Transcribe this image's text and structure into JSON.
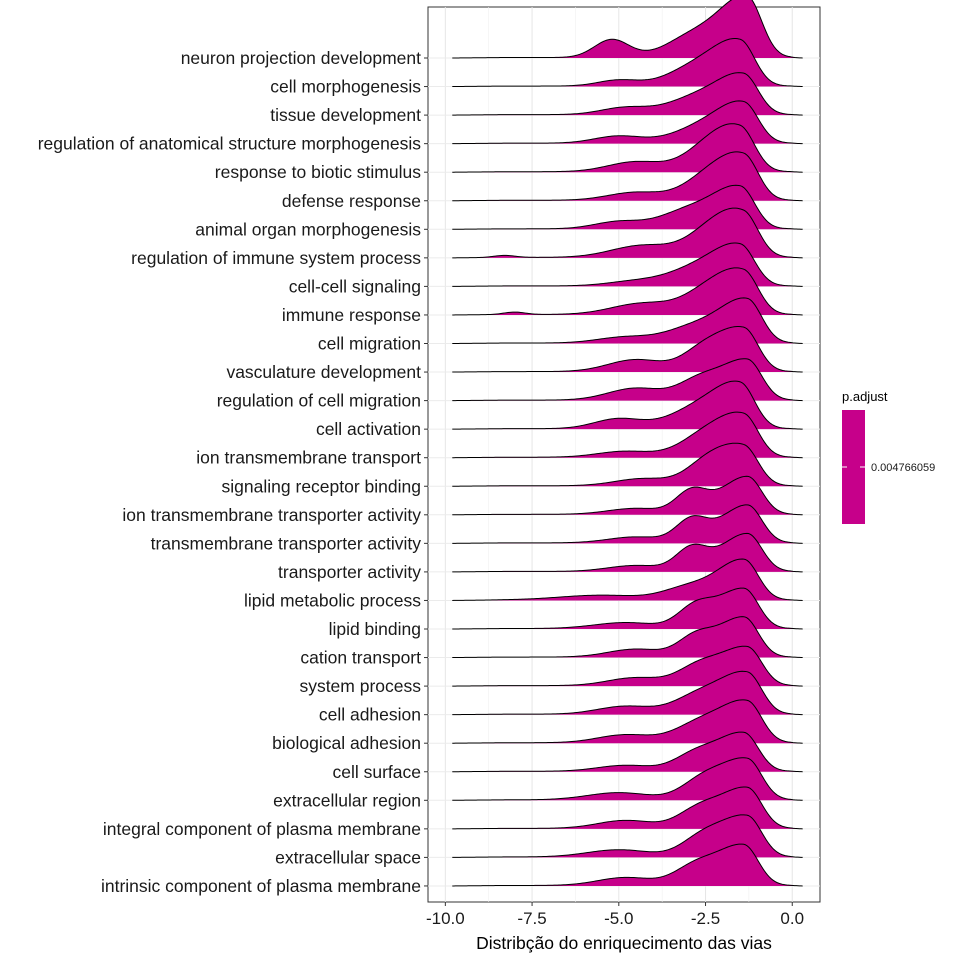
{
  "chart_data": {
    "type": "ridgeline",
    "xlabel": "Distribção do enriquecimento das vias",
    "ylabel": "",
    "xlim": [
      -10.5,
      0.8
    ],
    "x_ticks": [
      -10.0,
      -7.5,
      -5.0,
      -2.5,
      0.0
    ],
    "x_tick_labels": [
      "-10.0",
      "-7.5",
      "-5.0",
      "-2.5",
      "0.0"
    ],
    "fill_color": "#C6008A",
    "grid": true,
    "legend": {
      "title": "p.adjust",
      "label": "0.004766059",
      "placement": "right",
      "color": "#C6008A"
    },
    "categories": [
      {
        "name": "neuron projection development",
        "range": [
          -9.8,
          0.3
        ],
        "peak": -1.3,
        "peak_height": 1.45,
        "bumps": [
          [
            -5.2,
            0.45,
            0.5
          ],
          [
            -2.8,
            0.55,
            0.8
          ]
        ]
      },
      {
        "name": "cell morphogenesis",
        "range": [
          -9.8,
          0.3
        ],
        "peak": -1.5,
        "peak_height": 1.05,
        "bumps": [
          [
            -5.0,
            0.15,
            0.6
          ],
          [
            -2.8,
            0.45,
            0.8
          ]
        ]
      },
      {
        "name": "tissue development",
        "range": [
          -9.8,
          0.3
        ],
        "peak": -1.4,
        "peak_height": 0.95,
        "bumps": [
          [
            -4.8,
            0.18,
            0.7
          ],
          [
            -2.8,
            0.4,
            0.8
          ]
        ]
      },
      {
        "name": "regulation of anatomical structure morphogenesis",
        "range": [
          -9.8,
          0.3
        ],
        "peak": -1.4,
        "peak_height": 0.95,
        "bumps": [
          [
            -5.0,
            0.18,
            0.7
          ],
          [
            -2.7,
            0.35,
            0.8
          ]
        ]
      },
      {
        "name": "response to biotic stimulus",
        "range": [
          -9.8,
          0.3
        ],
        "peak": -1.5,
        "peak_height": 1.0,
        "bumps": [
          [
            -4.5,
            0.25,
            0.8
          ],
          [
            -2.5,
            0.45,
            0.7
          ]
        ]
      },
      {
        "name": "defense response",
        "range": [
          -9.8,
          0.3
        ],
        "peak": -1.4,
        "peak_height": 1.05,
        "bumps": [
          [
            -4.5,
            0.2,
            0.8
          ],
          [
            -2.5,
            0.45,
            0.7
          ]
        ]
      },
      {
        "name": "animal organ morphogenesis",
        "range": [
          -9.8,
          0.3
        ],
        "peak": -1.5,
        "peak_height": 1.0,
        "bumps": [
          [
            -5.0,
            0.18,
            0.7
          ],
          [
            -3.0,
            0.45,
            0.8
          ]
        ]
      },
      {
        "name": "regulation of immune system process",
        "range": [
          -9.8,
          0.3
        ],
        "peak": -1.4,
        "peak_height": 1.0,
        "bumps": [
          [
            -8.3,
            0.05,
            0.3
          ],
          [
            -4.3,
            0.3,
            0.9
          ],
          [
            -2.4,
            0.5,
            0.7
          ]
        ]
      },
      {
        "name": "cell-cell signaling",
        "range": [
          -9.8,
          0.3
        ],
        "peak": -1.5,
        "peak_height": 0.95,
        "bumps": [
          [
            -4.5,
            0.12,
            0.8
          ],
          [
            -2.8,
            0.4,
            0.8
          ]
        ]
      },
      {
        "name": "immune response",
        "range": [
          -9.8,
          0.3
        ],
        "peak": -1.4,
        "peak_height": 1.0,
        "bumps": [
          [
            -8.0,
            0.06,
            0.3
          ],
          [
            -4.3,
            0.28,
            0.9
          ],
          [
            -2.5,
            0.45,
            0.7
          ]
        ]
      },
      {
        "name": "cell migration",
        "range": [
          -9.8,
          0.3
        ],
        "peak": -1.3,
        "peak_height": 1.05,
        "bumps": [
          [
            -4.8,
            0.15,
            0.8
          ],
          [
            -2.8,
            0.4,
            0.8
          ]
        ]
      },
      {
        "name": "vasculature development",
        "range": [
          -9.8,
          0.3
        ],
        "peak": -1.4,
        "peak_height": 1.05,
        "bumps": [
          [
            -4.5,
            0.3,
            0.8
          ],
          [
            -2.6,
            0.45,
            0.6
          ]
        ]
      },
      {
        "name": "regulation of cell migration",
        "range": [
          -9.8,
          0.3
        ],
        "peak": -1.3,
        "peak_height": 1.0,
        "bumps": [
          [
            -4.5,
            0.3,
            0.8
          ],
          [
            -2.7,
            0.45,
            0.6
          ]
        ]
      },
      {
        "name": "cell activation",
        "range": [
          -9.8,
          0.3
        ],
        "peak": -1.5,
        "peak_height": 1.05,
        "bumps": [
          [
            -5.0,
            0.25,
            0.7
          ],
          [
            -2.8,
            0.45,
            0.8
          ]
        ]
      },
      {
        "name": "ion transmembrane transport",
        "range": [
          -9.8,
          0.3
        ],
        "peak": -1.4,
        "peak_height": 1.0,
        "bumps": [
          [
            -4.8,
            0.15,
            0.8
          ],
          [
            -2.6,
            0.45,
            0.7
          ]
        ]
      },
      {
        "name": "signaling receptor binding",
        "range": [
          -9.8,
          0.3
        ],
        "peak": -1.4,
        "peak_height": 0.95,
        "bumps": [
          [
            -4.3,
            0.18,
            0.8
          ],
          [
            -2.5,
            0.45,
            0.6
          ]
        ]
      },
      {
        "name": "ion transmembrane transporter activity",
        "range": [
          -9.8,
          0.3
        ],
        "peak": -1.3,
        "peak_height": 0.95,
        "bumps": [
          [
            -4.5,
            0.15,
            0.8
          ],
          [
            -2.9,
            0.55,
            0.45
          ]
        ]
      },
      {
        "name": "transmembrane transporter activity",
        "range": [
          -9.8,
          0.3
        ],
        "peak": -1.3,
        "peak_height": 0.95,
        "bumps": [
          [
            -4.5,
            0.15,
            0.8
          ],
          [
            -2.9,
            0.55,
            0.45
          ]
        ]
      },
      {
        "name": "transporter activity",
        "range": [
          -9.8,
          0.3
        ],
        "peak": -1.3,
        "peak_height": 0.95,
        "bumps": [
          [
            -4.5,
            0.15,
            0.8
          ],
          [
            -2.9,
            0.55,
            0.45
          ]
        ]
      },
      {
        "name": "lipid metabolic process",
        "range": [
          -9.8,
          0.3
        ],
        "peak": -1.4,
        "peak_height": 1.0,
        "bumps": [
          [
            -5.5,
            0.12,
            1.2
          ],
          [
            -3.0,
            0.3,
            0.7
          ]
        ]
      },
      {
        "name": "lipid binding",
        "range": [
          -9.8,
          0.3
        ],
        "peak": -1.4,
        "peak_height": 1.0,
        "bumps": [
          [
            -4.8,
            0.15,
            0.9
          ],
          [
            -2.8,
            0.5,
            0.5
          ]
        ]
      },
      {
        "name": "cation transport",
        "range": [
          -9.8,
          0.3
        ],
        "peak": -1.4,
        "peak_height": 1.0,
        "bumps": [
          [
            -4.5,
            0.2,
            0.8
          ],
          [
            -2.8,
            0.45,
            0.5
          ]
        ]
      },
      {
        "name": "system process",
        "range": [
          -9.8,
          0.3
        ],
        "peak": -1.3,
        "peak_height": 0.95,
        "bumps": [
          [
            -4.5,
            0.2,
            0.8
          ],
          [
            -2.7,
            0.45,
            0.6
          ]
        ]
      },
      {
        "name": "cell adhesion",
        "range": [
          -9.8,
          0.3
        ],
        "peak": -1.3,
        "peak_height": 1.0,
        "bumps": [
          [
            -4.8,
            0.2,
            0.8
          ],
          [
            -2.7,
            0.45,
            0.7
          ]
        ]
      },
      {
        "name": "biological adhesion",
        "range": [
          -9.8,
          0.3
        ],
        "peak": -1.3,
        "peak_height": 1.0,
        "bumps": [
          [
            -4.8,
            0.2,
            0.8
          ],
          [
            -2.7,
            0.45,
            0.7
          ]
        ]
      },
      {
        "name": "cell surface",
        "range": [
          -9.8,
          0.3
        ],
        "peak": -1.4,
        "peak_height": 0.95,
        "bumps": [
          [
            -4.8,
            0.15,
            0.8
          ],
          [
            -2.8,
            0.4,
            0.6
          ]
        ]
      },
      {
        "name": "extracellular region",
        "range": [
          -9.8,
          0.3
        ],
        "peak": -1.3,
        "peak_height": 1.0,
        "bumps": [
          [
            -5.0,
            0.18,
            0.9
          ],
          [
            -2.6,
            0.45,
            0.6
          ]
        ]
      },
      {
        "name": "integral component of plasma membrane",
        "range": [
          -9.8,
          0.3
        ],
        "peak": -1.3,
        "peak_height": 1.0,
        "bumps": [
          [
            -4.8,
            0.2,
            0.8
          ],
          [
            -2.7,
            0.45,
            0.6
          ]
        ]
      },
      {
        "name": "extracellular space",
        "range": [
          -9.8,
          0.3
        ],
        "peak": -1.3,
        "peak_height": 1.0,
        "bumps": [
          [
            -5.0,
            0.18,
            0.9
          ],
          [
            -2.6,
            0.45,
            0.6
          ]
        ]
      },
      {
        "name": "intrinsic component of plasma membrane",
        "range": [
          -9.8,
          0.3
        ],
        "peak": -1.4,
        "peak_height": 1.0,
        "bumps": [
          [
            -4.8,
            0.2,
            0.8
          ],
          [
            -2.8,
            0.45,
            0.6
          ]
        ]
      }
    ]
  }
}
